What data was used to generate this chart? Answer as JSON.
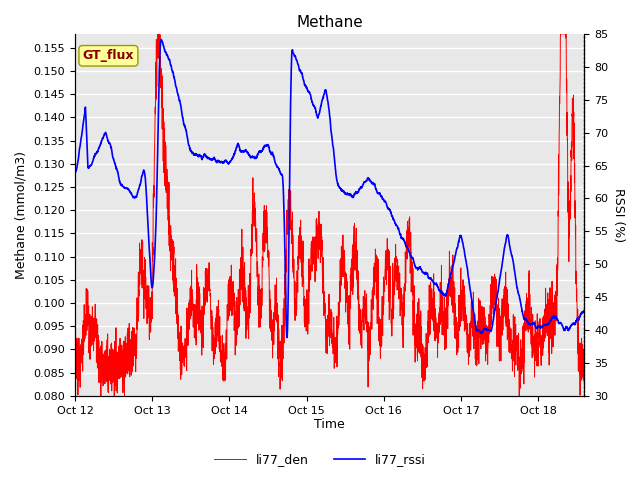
{
  "title": "Methane",
  "ylabel_left": "Methane (mmol/m3)",
  "ylabel_right": "RSSI (%)",
  "xlabel": "Time",
  "ylim_left": [
    0.08,
    0.158
  ],
  "ylim_right": [
    30,
    85
  ],
  "yticks_left": [
    0.08,
    0.085,
    0.09,
    0.095,
    0.1,
    0.105,
    0.11,
    0.115,
    0.12,
    0.125,
    0.13,
    0.135,
    0.14,
    0.145,
    0.15,
    0.155
  ],
  "yticks_right": [
    30,
    35,
    40,
    45,
    50,
    55,
    60,
    65,
    70,
    75,
    80,
    85
  ],
  "xtick_labels": [
    "Oct 12",
    "Oct 13",
    "Oct 14",
    "Oct 15",
    "Oct 16",
    "Oct 17",
    "Oct 18"
  ],
  "legend_labels": [
    "li77_den",
    "li77_rssi"
  ],
  "line_colors": [
    "red",
    "blue"
  ],
  "fig_bg_color": "#ffffff",
  "plot_bg_color": "#e8e8e8",
  "grid_color": "#ffffff",
  "annotation_text": "GT_flux",
  "annotation_bg": "#ffff99",
  "annotation_border": "#999900",
  "annotation_text_color": "#880000"
}
